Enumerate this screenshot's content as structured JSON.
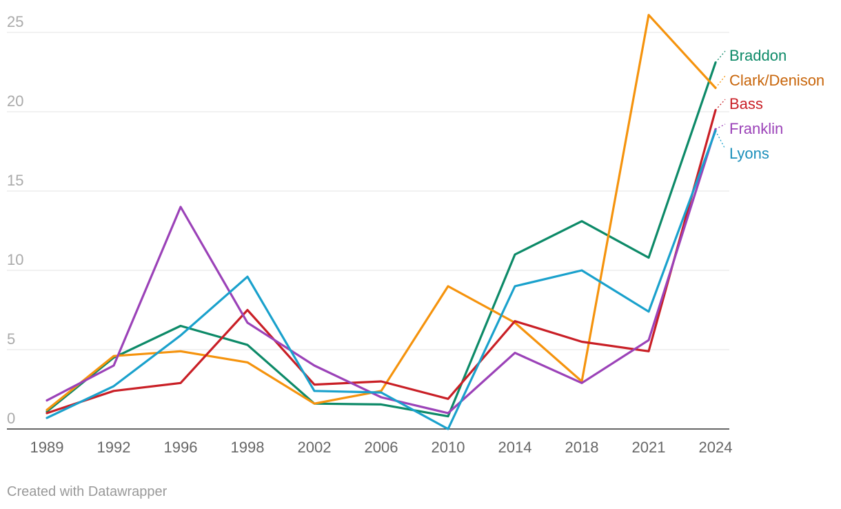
{
  "chart_data": {
    "type": "line",
    "x": [
      "1989",
      "1992",
      "1996",
      "1998",
      "2002",
      "2006",
      "2010",
      "2014",
      "2018",
      "2021",
      "2024"
    ],
    "y_ticks": [
      "0",
      "5",
      "10",
      "15",
      "20",
      "25"
    ],
    "ylim": [
      0,
      26
    ],
    "grid": true,
    "legend": "right (direct labels at line ends)",
    "series": [
      {
        "name": "Braddon",
        "color": "#0d8a68",
        "values": [
          1.1,
          4.5,
          6.5,
          5.3,
          1.6,
          1.55,
          0.8,
          11.0,
          13.1,
          10.8,
          23.1
        ]
      },
      {
        "name": "Clark/Denison",
        "color": "#f5930d",
        "values": [
          1.2,
          4.6,
          4.9,
          4.2,
          1.6,
          2.4,
          9.0,
          6.7,
          3.0,
          26.1,
          21.5
        ]
      },
      {
        "name": "Bass",
        "color": "#c91f26",
        "values": [
          1.0,
          2.4,
          2.9,
          7.5,
          2.8,
          3.0,
          1.9,
          6.8,
          5.5,
          4.9,
          20.1
        ]
      },
      {
        "name": "Franklin",
        "color": "#9b42b8",
        "values": [
          1.8,
          4.0,
          14.0,
          6.7,
          4.0,
          2.0,
          1.0,
          4.8,
          2.9,
          5.6,
          18.9
        ]
      },
      {
        "name": "Lyons",
        "color": "#1aa1cc",
        "values": [
          0.7,
          2.7,
          5.9,
          9.6,
          2.4,
          2.3,
          0.0,
          9.0,
          10.0,
          7.4,
          18.8
        ]
      }
    ],
    "label_colors": [
      "#0d8a68",
      "#c8650a",
      "#c91f26",
      "#9b42b8",
      "#1a8fbb"
    ]
  },
  "footer": {
    "credit": "Created with Datawrapper"
  }
}
